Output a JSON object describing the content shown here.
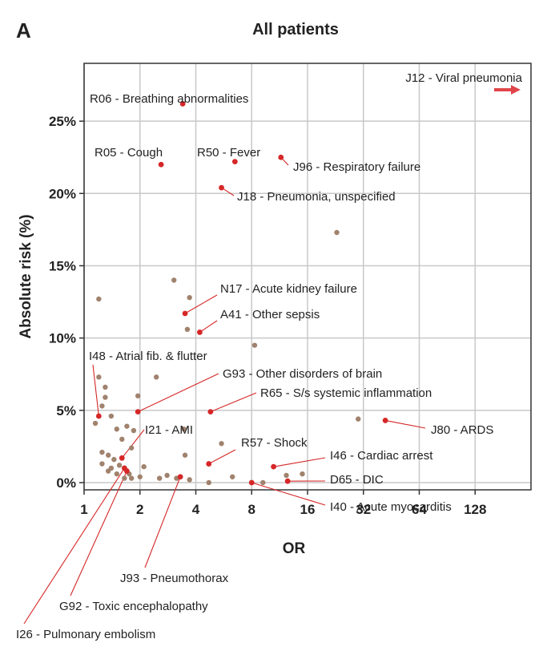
{
  "panel_label": "A",
  "colors": {
    "highlight": "#d62728",
    "other": "#a0826d",
    "grid": "#c8c8c8",
    "arrow": "#e0454a"
  },
  "chart_data": {
    "type": "scatter",
    "title": "All patients",
    "xlabel": "OR",
    "ylabel": "Absolute risk (%)",
    "xscale": "log2",
    "xlim": [
      1,
      256
    ],
    "ylim": [
      -0.5,
      29
    ],
    "xticks": [
      1,
      2,
      4,
      8,
      16,
      32,
      64,
      128
    ],
    "xtick_labels": [
      "1",
      "2",
      "4",
      "8",
      "16",
      "32",
      "64",
      "128"
    ],
    "yticks": [
      0,
      5,
      10,
      15,
      20,
      25
    ],
    "ytick_labels": [
      "0%",
      "5%",
      "10%",
      "15%",
      "20%",
      "25%"
    ],
    "grid": true,
    "highlighted": [
      {
        "label": "R06 - Breathing abnormalities",
        "or": 3.4,
        "risk": 26.2
      },
      {
        "label": "R05 - Cough",
        "or": 2.6,
        "risk": 22.0
      },
      {
        "label": "R50 - Fever",
        "or": 6.5,
        "risk": 22.2
      },
      {
        "label": "J96 - Respiratory failure",
        "or": 11.5,
        "risk": 22.5
      },
      {
        "label": "J18 - Pneumonia, unspecified",
        "or": 5.5,
        "risk": 20.4
      },
      {
        "label": "N17 - Acute kidney failure",
        "or": 3.5,
        "risk": 11.7
      },
      {
        "label": "A41 - Other sepsis",
        "or": 4.2,
        "risk": 10.4
      },
      {
        "label": "I48 - Atrial fib. & flutter",
        "or": 1.2,
        "risk": 4.6
      },
      {
        "label": "G93 - Other disorders of brain",
        "or": 1.95,
        "risk": 4.9
      },
      {
        "label": "R65 - S/s systemic inflammation",
        "or": 4.8,
        "risk": 4.9
      },
      {
        "label": "J80 - ARDS",
        "or": 42,
        "risk": 4.3
      },
      {
        "label": "I21 - AMI",
        "or": 1.6,
        "risk": 1.7
      },
      {
        "label": "R57 - Shock",
        "or": 4.7,
        "risk": 1.3
      },
      {
        "label": "I46 - Cardiac arrest",
        "or": 10.5,
        "risk": 1.1
      },
      {
        "label": "D65 - DIC",
        "or": 12.5,
        "risk": 0.1
      },
      {
        "label": "I40 - Acute myocarditis",
        "or": 8.0,
        "risk": 0.0
      },
      {
        "label": "J93 - Pneumothorax",
        "or": 3.3,
        "risk": 0.4
      },
      {
        "label": "G92 - Toxic encephalopathy",
        "or": 1.7,
        "risk": 0.8
      },
      {
        "label": "I26 - Pulmonary embolism",
        "or": 1.65,
        "risk": 1.0
      }
    ],
    "offscale": {
      "label": "J12 - Viral pneumonia",
      "direction": "right"
    },
    "other_points": [
      [
        1.2,
        12.7
      ],
      [
        23,
        17.3
      ],
      [
        3.05,
        14.0
      ],
      [
        3.7,
        12.8
      ],
      [
        3.6,
        10.6
      ],
      [
        8.3,
        9.5
      ],
      [
        2.45,
        7.3
      ],
      [
        1.2,
        7.3
      ],
      [
        1.3,
        6.6
      ],
      [
        1.3,
        5.9
      ],
      [
        1.95,
        6.0
      ],
      [
        1.15,
        4.1
      ],
      [
        1.25,
        5.3
      ],
      [
        1.4,
        4.6
      ],
      [
        1.5,
        3.7
      ],
      [
        1.7,
        3.9
      ],
      [
        1.85,
        3.6
      ],
      [
        1.6,
        3.0
      ],
      [
        1.8,
        2.4
      ],
      [
        1.25,
        2.1
      ],
      [
        1.35,
        1.9
      ],
      [
        1.45,
        1.6
      ],
      [
        1.4,
        1.0
      ],
      [
        1.55,
        1.2
      ],
      [
        1.35,
        0.8
      ],
      [
        1.5,
        0.6
      ],
      [
        1.75,
        0.6
      ],
      [
        1.65,
        0.3
      ],
      [
        2.1,
        1.1
      ],
      [
        2.0,
        0.4
      ],
      [
        3.45,
        3.7
      ],
      [
        3.5,
        1.9
      ],
      [
        3.7,
        0.2
      ],
      [
        2.55,
        0.3
      ],
      [
        2.8,
        0.5
      ],
      [
        3.15,
        0.3
      ],
      [
        5.5,
        2.7
      ],
      [
        6.3,
        0.4
      ],
      [
        4.7,
        0.0
      ],
      [
        30,
        4.4
      ],
      [
        12.3,
        0.5
      ],
      [
        15.0,
        0.6
      ],
      [
        9.2,
        0.0
      ],
      [
        1.8,
        0.3
      ],
      [
        1.25,
        1.3
      ]
    ]
  }
}
